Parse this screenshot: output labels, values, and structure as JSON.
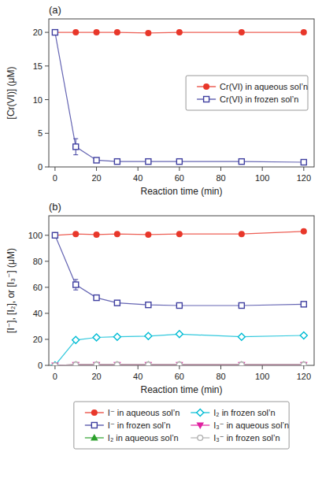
{
  "chart_data": [
    {
      "type": "line",
      "x": [
        0,
        10,
        20,
        30,
        45,
        60,
        90,
        120
      ],
      "x_label": "Reaction time (min)",
      "y_label": "[Cr(VI)] (μM)",
      "annotations": [
        "(a)"
      ],
      "xlim": [
        -3,
        125
      ],
      "xticks": [
        0,
        20,
        40,
        60,
        80,
        100,
        120
      ],
      "ylim": [
        0,
        22
      ],
      "yticks": [
        0,
        5,
        10,
        15,
        20
      ],
      "grid": false,
      "legend": "center right",
      "series": [
        {
          "name": "Cr(VI) in aqueous sol’n",
          "color": "#e8372a",
          "marker": "circle",
          "line_style": "solid",
          "values": [
            20.0,
            20.0,
            20.0,
            20.0,
            19.9,
            20.0,
            20.0,
            20.0
          ]
        },
        {
          "name": "Cr(VI) in frozen sol’n",
          "color": "#4040a0",
          "marker": "square-open",
          "line_style": "solid",
          "values": [
            20.0,
            3.0,
            1.0,
            0.8,
            0.8,
            0.8,
            0.8,
            0.7
          ],
          "errors": [
            0,
            1.2,
            0,
            0,
            0,
            0,
            0,
            0
          ]
        }
      ]
    },
    {
      "type": "line",
      "x": [
        0,
        10,
        20,
        30,
        45,
        60,
        90,
        120
      ],
      "x_label": "Reaction time (min)",
      "y_label": "[I⁻], [I₂], or [I₃⁻] (μM)",
      "annotations": [
        "(b)"
      ],
      "xlim": [
        -3,
        125
      ],
      "xticks": [
        0,
        20,
        40,
        60,
        80,
        100,
        120
      ],
      "ylim": [
        0,
        115
      ],
      "yticks": [
        0,
        20,
        40,
        60,
        80,
        100
      ],
      "grid": false,
      "legend": "bottom",
      "series": [
        {
          "name": "I⁻ in aqueous sol’n",
          "color": "#e8372a",
          "marker": "circle",
          "line_style": "solid",
          "values": [
            100.0,
            101.0,
            100.5,
            101.0,
            100.5,
            101.0,
            101.0,
            103.0
          ]
        },
        {
          "name": "I⁻ in frozen sol’n",
          "color": "#4040a0",
          "marker": "square-open",
          "line_style": "solid",
          "values": [
            100.0,
            62.0,
            52.0,
            48.0,
            46.5,
            46.0,
            46.0,
            47.0
          ],
          "errors": [
            0,
            4.0,
            0,
            0,
            0,
            0,
            0,
            0
          ]
        },
        {
          "name": "I₂ in aqueous sol’n",
          "color": "#2ca02c",
          "marker": "triangle-up",
          "line_style": "solid",
          "values": [
            0.0,
            0.5,
            0.5,
            0.5,
            0.5,
            0.5,
            0.5,
            0.5
          ]
        },
        {
          "name": "I₂ in frozen sol’n",
          "color": "#00bcd4",
          "marker": "diamond-open",
          "line_style": "solid",
          "values": [
            0.0,
            19.5,
            21.5,
            22.0,
            22.5,
            24.0,
            22.0,
            23.0
          ]
        },
        {
          "name": "I₃⁻ in aqueous sol’n",
          "color": "#e020a0",
          "marker": "triangle-down",
          "line_style": "solid",
          "values": [
            0.0,
            0.5,
            0.5,
            0.5,
            0.5,
            0.5,
            0.5,
            0.5
          ]
        },
        {
          "name": "I₃⁻ in frozen sol’n",
          "color": "#b0b0b0",
          "marker": "circle-open",
          "line_style": "solid",
          "values": [
            0.0,
            0.5,
            0.5,
            0.5,
            0.5,
            0.5,
            0.5,
            0.5
          ]
        }
      ]
    }
  ]
}
